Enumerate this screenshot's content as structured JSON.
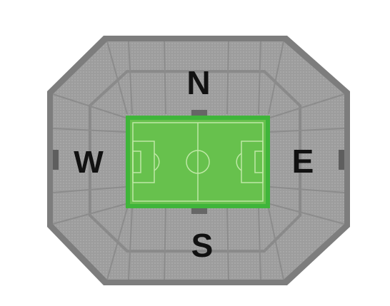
{
  "map": {
    "stands": {
      "north": "N",
      "south": "S",
      "east": "E",
      "west": "W"
    }
  },
  "colors": {
    "outer_ring": "#7f7f7f",
    "seating": "#9c9c9c",
    "seating_light": "#a9a9a9",
    "pitch_border": "#3fb53a",
    "pitch": "#67c14d",
    "pitch_lines": "#bfe8a6",
    "label": "#111111"
  }
}
